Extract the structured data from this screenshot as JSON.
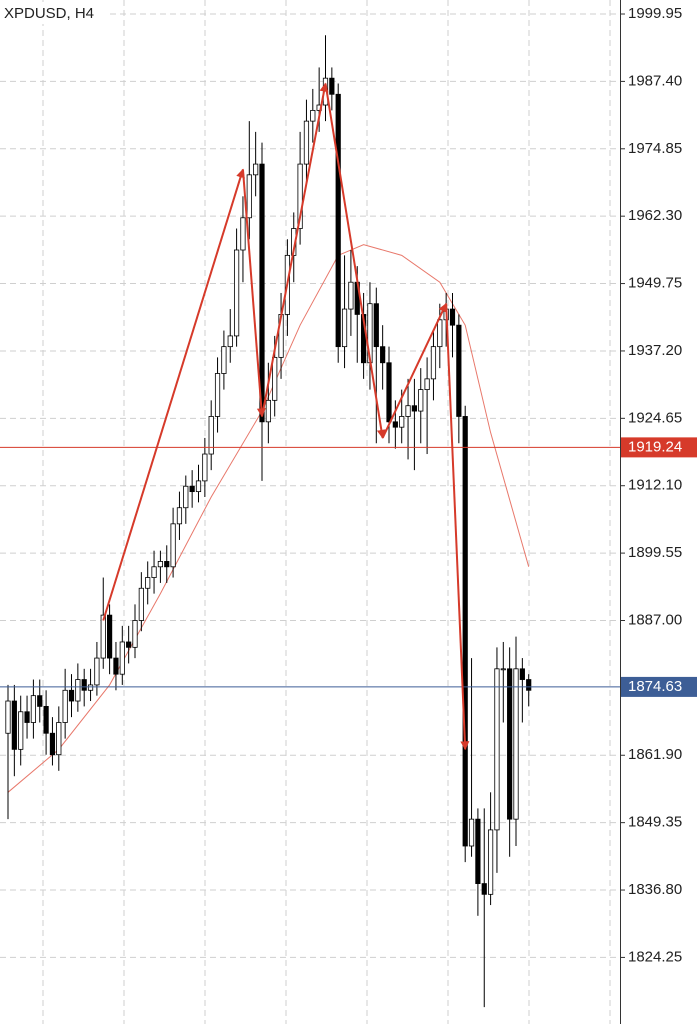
{
  "chart_data": {
    "type": "candlestick",
    "title": "XPDUSD, H4",
    "ylim": [
      1811.85,
      2002.56
    ],
    "yticks": [
      1999.95,
      {
        "value": 1987.4,
        "label": "1987.40"
      },
      1974.85,
      {
        "value": 1962.3,
        "label": "1962.30"
      },
      1949.75,
      {
        "value": 1937.2,
        "label": "1937.20"
      },
      1924.65,
      {
        "value": 1912.1,
        "label": "1912.10"
      },
      1899.55,
      {
        "value": 1887,
        "label": "1887.00"
      },
      {
        "value": 1861.9,
        "label": "1861.90"
      },
      1849.35,
      {
        "value": 1836.8,
        "label": "1836.80"
      },
      1824.25
    ],
    "grid": true,
    "up_color": "#ffffff",
    "down_color": "#000000",
    "open": [
      1866,
      1872,
      1863,
      1870,
      1868,
      1873,
      1871,
      1866,
      1862,
      1868,
      1874,
      1872,
      1876,
      1874,
      1875,
      1880,
      1888,
      1880,
      1877,
      1883,
      1882,
      1887,
      1893,
      1895,
      1897,
      1898,
      1897,
      1905,
      1908,
      1912,
      1911,
      1913,
      1918,
      1925,
      1933,
      1938,
      1940,
      1956,
      1962,
      1970,
      1972,
      1924,
      1928,
      1936,
      1944,
      1955,
      1960,
      1972,
      1980,
      1982,
      1983,
      1988,
      1985,
      1938,
      1945,
      1950,
      1944,
      1935,
      1946,
      1938,
      1935,
      1924,
      1923,
      1925,
      1927,
      1926,
      1930,
      1932,
      1938,
      1943,
      1945,
      1942,
      1925,
      1845,
      1850,
      1838,
      1836,
      1848,
      1878,
      1878,
      1850,
      1878,
      1876
    ],
    "high": [
      1875,
      1875,
      1873,
      1873,
      1876,
      1876,
      1874,
      1869,
      1871,
      1878,
      1877,
      1879,
      1878,
      1878,
      1883,
      1895,
      1890,
      1883,
      1886,
      1886,
      1890,
      1896,
      1898,
      1900,
      1900,
      1901,
      1908,
      1911,
      1914,
      1915,
      1916,
      1921,
      1928,
      1936,
      1941,
      1945,
      1960,
      1966,
      1980,
      1978,
      1976,
      1935,
      1940,
      1948,
      1958,
      1963,
      1978,
      1984,
      1986,
      1990,
      1996,
      1990,
      1987,
      1955,
      1956,
      1953,
      1948,
      1950,
      1949,
      1942,
      1938,
      1928,
      1930,
      1932,
      1932,
      1934,
      1936,
      1941,
      1946,
      1948,
      1948,
      1944,
      1927,
      1880,
      1852,
      1852,
      1855,
      1882,
      1883,
      1882,
      1884,
      1880,
      1877
    ],
    "low": [
      1850,
      1858,
      1860,
      1865,
      1865,
      1868,
      1862,
      1860,
      1859,
      1865,
      1869,
      1870,
      1871,
      1872,
      1873,
      1878,
      1877,
      1874,
      1875,
      1879,
      1880,
      1885,
      1890,
      1892,
      1894,
      1894,
      1895,
      1902,
      1905,
      1908,
      1909,
      1910,
      1915,
      1922,
      1930,
      1935,
      1938,
      1950,
      1958,
      1966,
      1913,
      1920,
      1925,
      1932,
      1940,
      1950,
      1957,
      1968,
      1976,
      1978,
      1980,
      1982,
      1935,
      1934,
      1940,
      1935,
      1932,
      1930,
      1920,
      1930,
      1920,
      1919,
      1920,
      1917,
      1915,
      1920,
      1918,
      1928,
      1934,
      1938,
      1936,
      1920,
      1842,
      1843,
      1832,
      1815,
      1834,
      1840,
      1868,
      1843,
      1845,
      1868,
      1871
    ],
    "close": [
      1872,
      1863,
      1870,
      1868,
      1873,
      1871,
      1866,
      1862,
      1868,
      1874,
      1872,
      1876,
      1874,
      1875,
      1880,
      1888,
      1880,
      1877,
      1883,
      1882,
      1887,
      1893,
      1895,
      1897,
      1898,
      1897,
      1905,
      1908,
      1912,
      1911,
      1913,
      1918,
      1925,
      1933,
      1938,
      1940,
      1956,
      1962,
      1970,
      1972,
      1924,
      1928,
      1936,
      1944,
      1955,
      1960,
      1972,
      1980,
      1982,
      1983,
      1988,
      1985,
      1938,
      1945,
      1950,
      1944,
      1935,
      1946,
      1938,
      1935,
      1924,
      1923,
      1925,
      1927,
      1926,
      1930,
      1932,
      1938,
      1943,
      1945,
      1942,
      1925,
      1845,
      1850,
      1838,
      1836,
      1848,
      1878,
      1878,
      1850,
      1878,
      1876,
      1874
    ],
    "moving_average": {
      "color": "#e8786b",
      "x": [
        0,
        8,
        16,
        24,
        32,
        40,
        46,
        52,
        56,
        62,
        68,
        72,
        76,
        82
      ],
      "values": [
        1855,
        1863,
        1875,
        1892,
        1910,
        1926,
        1942,
        1955,
        1957,
        1955,
        1950,
        1942,
        1922,
        1897
      ]
    },
    "zigzag": {
      "color": "#d63a2a",
      "x": [
        15,
        37,
        40,
        50,
        59,
        69,
        72
      ],
      "values": [
        1887,
        1971,
        1925,
        1987,
        1921,
        1946,
        1863
      ]
    },
    "price_lines": [
      {
        "value": 1919.24,
        "color": "#d63a2a"
      },
      {
        "value": 1874.63,
        "color": "#3d5e96"
      }
    ]
  }
}
